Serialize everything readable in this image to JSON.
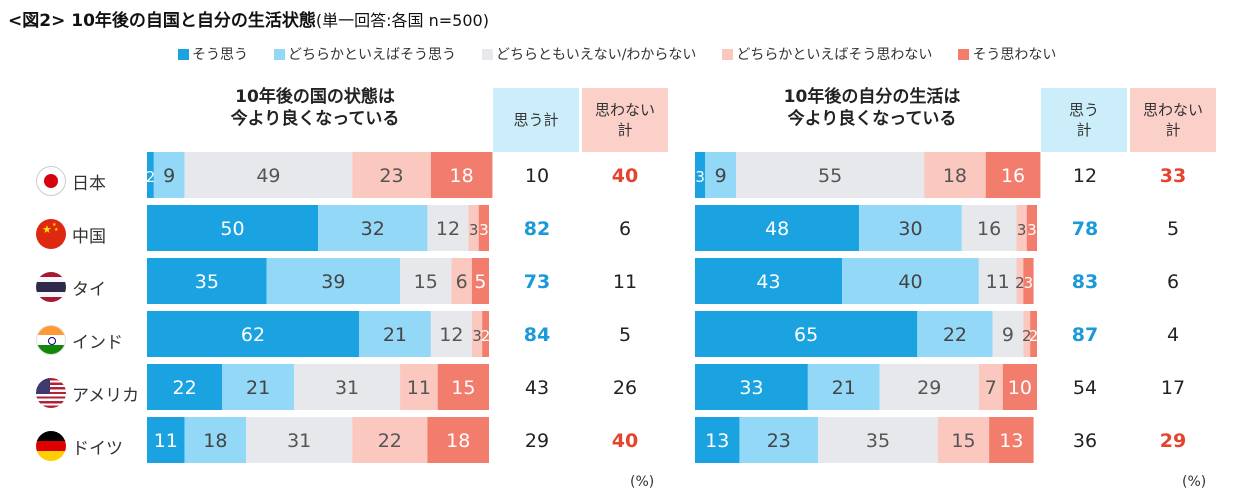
{
  "title": {
    "main": "<図2> 10年後の自国と自分の生活状態",
    "sub": "(単一回答:各国 n=500)"
  },
  "legend": [
    {
      "label": "そう思う",
      "color": "#1aa3e0"
    },
    {
      "label": "どちらかといえばそう思う",
      "color": "#93d8f7"
    },
    {
      "label": "どちらともいえない/わからない",
      "color": "#e6e8ec"
    },
    {
      "label": "どちらかといえばそう思わない",
      "color": "#fbc8c0"
    },
    {
      "label": "そう思わない",
      "color": "#f27d6c"
    }
  ],
  "headers": {
    "omou": "思う計",
    "omowanai": "思わない計"
  },
  "highlight_colors": {
    "blue": "#1a9ad9",
    "red": "#e5432d",
    "normal": "#222222"
  },
  "unit": "(%)",
  "countries": [
    "日本",
    "中国",
    "タイ",
    "インド",
    "アメリカ",
    "ドイツ"
  ],
  "chart_data": [
    {
      "type": "bar",
      "title": "10年後の国の状態は\n今より良くなっている",
      "categories": [
        "日本",
        "中国",
        "タイ",
        "インド",
        "アメリカ",
        "ドイツ"
      ],
      "series": [
        {
          "name": "そう思う",
          "values": [
            2,
            50,
            35,
            62,
            22,
            11
          ]
        },
        {
          "name": "どちらかといえばそう思う",
          "values": [
            9,
            32,
            39,
            21,
            21,
            18
          ]
        },
        {
          "name": "どちらともいえない/わからない",
          "values": [
            49,
            12,
            15,
            12,
            31,
            31
          ]
        },
        {
          "name": "どちらかといえばそう思わない",
          "values": [
            23,
            3,
            6,
            3,
            11,
            22
          ]
        },
        {
          "name": "そう思わない",
          "values": [
            18,
            3,
            5,
            2,
            15,
            18
          ]
        }
      ],
      "omou_total": [
        10,
        82,
        73,
        84,
        43,
        29
      ],
      "omowanai_total": [
        40,
        6,
        11,
        5,
        26,
        40
      ],
      "omou_highlight": [
        false,
        true,
        true,
        true,
        false,
        false
      ],
      "omowanai_highlight": [
        true,
        false,
        false,
        false,
        false,
        true
      ],
      "stacked": true,
      "orientation": "horizontal"
    },
    {
      "type": "bar",
      "title": "10年後の自分の生活は\n今より良くなっている",
      "categories": [
        "日本",
        "中国",
        "タイ",
        "インド",
        "アメリカ",
        "ドイツ"
      ],
      "series": [
        {
          "name": "そう思う",
          "values": [
            3,
            48,
            43,
            65,
            33,
            13
          ]
        },
        {
          "name": "どちらかといえばそう思う",
          "values": [
            9,
            30,
            40,
            22,
            21,
            23
          ]
        },
        {
          "name": "どちらともいえない/わからない",
          "values": [
            55,
            16,
            11,
            9,
            29,
            35
          ]
        },
        {
          "name": "どちらかといえばそう思わない",
          "values": [
            18,
            3,
            2,
            2,
            7,
            15
          ]
        },
        {
          "name": "そう思わない",
          "values": [
            16,
            3,
            3,
            2,
            10,
            13
          ]
        }
      ],
      "omou_total": [
        12,
        78,
        83,
        87,
        54,
        36
      ],
      "omowanai_total": [
        33,
        5,
        6,
        4,
        17,
        29
      ],
      "omou_highlight": [
        false,
        true,
        true,
        true,
        false,
        false
      ],
      "omowanai_highlight": [
        true,
        false,
        false,
        false,
        false,
        true
      ],
      "stacked": true,
      "orientation": "horizontal"
    }
  ]
}
